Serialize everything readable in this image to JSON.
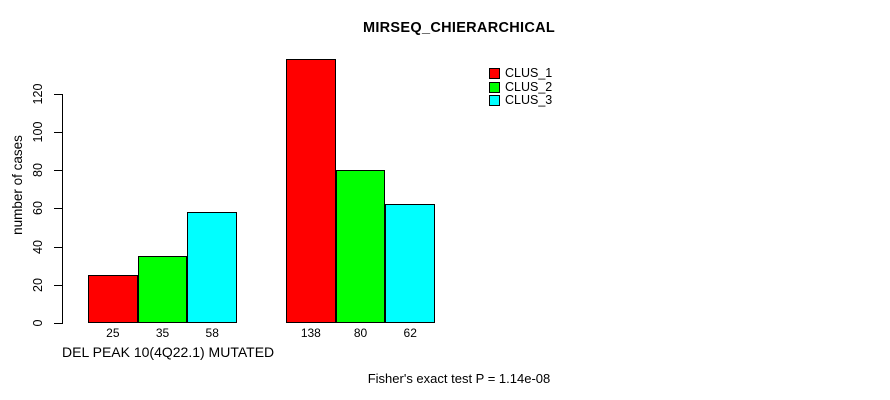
{
  "chart_data": {
    "type": "bar",
    "title": "MIRSEQ_CHIERARCHICAL",
    "ylabel": "number of cases",
    "xlabel": "DEL PEAK 10(4Q22.1) MUTATED",
    "annotation": "Fisher's exact test P = 1.14e-08",
    "y_ticks": [
      0,
      20,
      40,
      60,
      80,
      100,
      120
    ],
    "ylim": [
      0,
      138
    ],
    "grid": false,
    "group_count": 2,
    "show_bar_value_labels": true,
    "legend_position": "inside-top-center",
    "series": [
      {
        "name": "CLUS_1",
        "color": "#ff0000",
        "values": [
          25,
          138
        ]
      },
      {
        "name": "CLUS_2",
        "color": "#00ff00",
        "values": [
          35,
          80
        ]
      },
      {
        "name": "CLUS_3",
        "color": "#00ffff",
        "values": [
          58,
          62
        ]
      }
    ]
  }
}
